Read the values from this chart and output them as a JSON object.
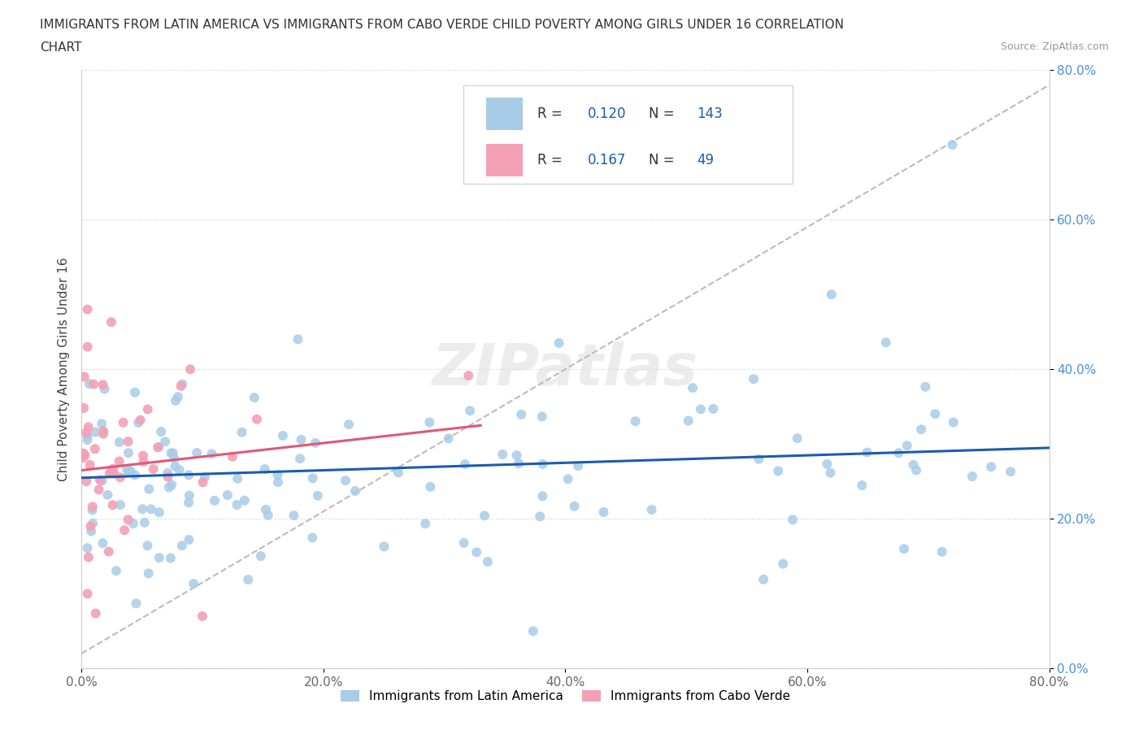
{
  "title_line1": "IMMIGRANTS FROM LATIN AMERICA VS IMMIGRANTS FROM CABO VERDE CHILD POVERTY AMONG GIRLS UNDER 16 CORRELATION",
  "title_line2": "CHART",
  "source": "Source: ZipAtlas.com",
  "ylabel": "Child Poverty Among Girls Under 16",
  "xlim": [
    0.0,
    0.8
  ],
  "ylim": [
    0.0,
    0.8
  ],
  "xticks": [
    0.0,
    0.2,
    0.4,
    0.6,
    0.8
  ],
  "yticks": [
    0.0,
    0.2,
    0.4,
    0.6,
    0.8
  ],
  "xticklabels": [
    "0.0%",
    "20.0%",
    "40.0%",
    "60.0%",
    "80.0%"
  ],
  "yticklabels": [
    "0.0%",
    "20.0%",
    "40.0%",
    "60.0%",
    "80.0%"
  ],
  "blue_color": "#A8CCE8",
  "pink_color": "#F4A0B5",
  "blue_line_color": "#1A5DAD",
  "pink_line_color": "#E05878",
  "trendline_gray": "#BBBBBB",
  "R_blue": 0.12,
  "N_blue": 143,
  "R_pink": 0.167,
  "N_pink": 49,
  "watermark": "ZIPatlas",
  "legend_label_blue": "Immigrants from Latin America",
  "legend_label_pink": "Immigrants from Cabo Verde",
  "blue_trend_x": [
    0.0,
    0.8
  ],
  "blue_trend_y": [
    0.255,
    0.295
  ],
  "pink_trend_x": [
    0.0,
    0.33
  ],
  "pink_trend_y": [
    0.265,
    0.325
  ],
  "gray_trend_x": [
    0.0,
    0.8
  ],
  "gray_trend_y": [
    0.02,
    0.78
  ]
}
